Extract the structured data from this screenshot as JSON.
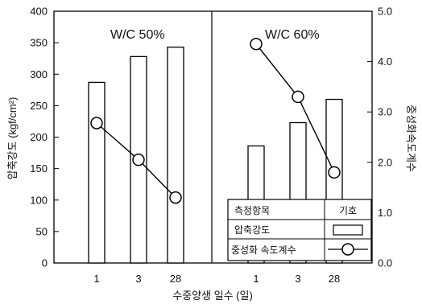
{
  "chart_data": {
    "type": "bar",
    "ylabel_left": "압축강도 (kgf/cm²)",
    "ylabel_right": "중성화속도계수",
    "xlabel": "수중양생 일수 (일)",
    "ylim_left": [
      0,
      400
    ],
    "ylim_right": [
      0.0,
      5.0
    ],
    "yticks_left": [
      "0",
      "50",
      "100",
      "150",
      "200",
      "250",
      "300",
      "350",
      "400"
    ],
    "yticks_right": [
      "0.0",
      "1.0",
      "2.0",
      "3.0",
      "4.0",
      "5.0"
    ],
    "grid": false,
    "panels": [
      {
        "title": "W/C 50%",
        "categories": [
          "1",
          "3",
          "28"
        ],
        "bar_values": [
          287,
          328,
          343
        ],
        "line_values": [
          2.78,
          2.05,
          1.3
        ]
      },
      {
        "title": "W/C 60%",
        "categories": [
          "1",
          "3",
          "28"
        ],
        "bar_values": [
          186,
          223,
          260
        ],
        "line_values": [
          4.35,
          3.3,
          1.8
        ]
      }
    ],
    "legend": {
      "position": "bottom-right",
      "header_item": "측정항목",
      "header_symbol": "기호",
      "bar_label": "압축강도",
      "line_label": "중성화 속도계수"
    }
  }
}
